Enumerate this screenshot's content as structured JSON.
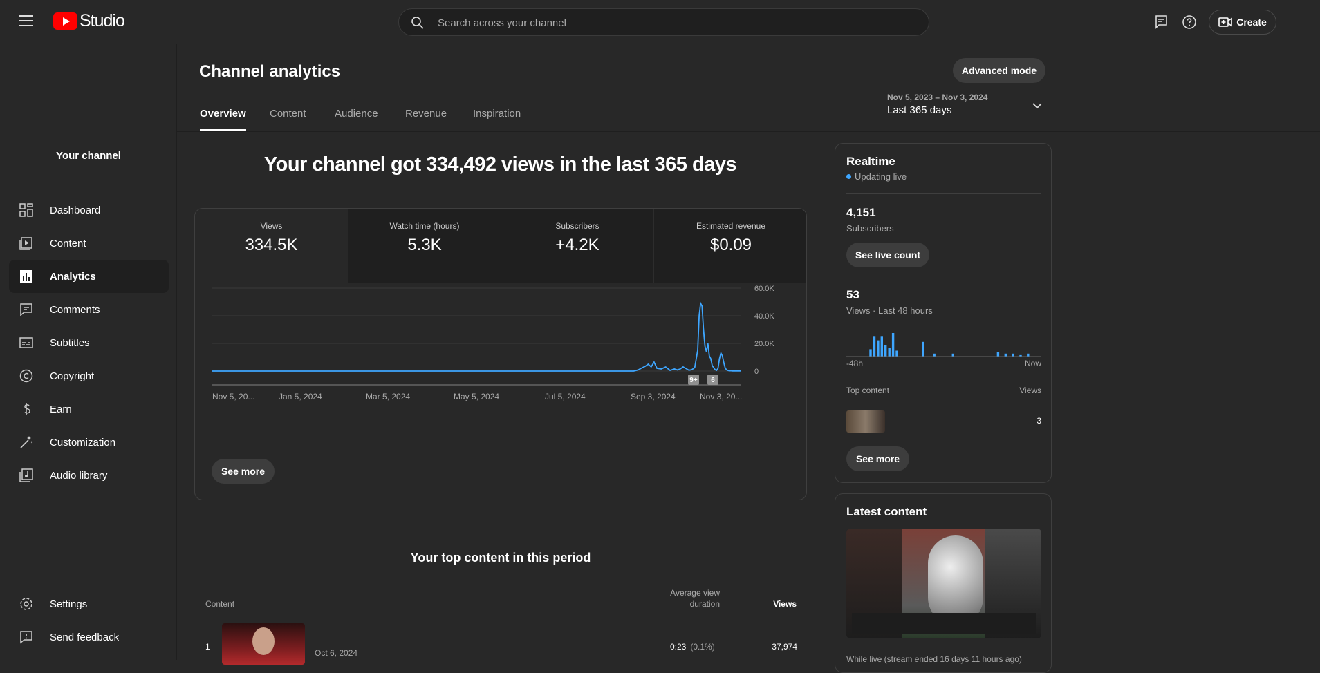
{
  "app": {
    "logo_text": "Studio"
  },
  "search": {
    "placeholder": "Search across your channel"
  },
  "topbar": {
    "create_label": "Create"
  },
  "sidebar": {
    "channel_label": "Your channel",
    "items": [
      {
        "label": "Dashboard",
        "icon": "dashboard-icon"
      },
      {
        "label": "Content",
        "icon": "content-icon"
      },
      {
        "label": "Analytics",
        "icon": "analytics-icon",
        "active": true
      },
      {
        "label": "Comments",
        "icon": "comments-icon"
      },
      {
        "label": "Subtitles",
        "icon": "subtitles-icon"
      },
      {
        "label": "Copyright",
        "icon": "copyright-icon"
      },
      {
        "label": "Earn",
        "icon": "earn-icon"
      },
      {
        "label": "Customization",
        "icon": "customization-icon"
      },
      {
        "label": "Audio library",
        "icon": "audio-library-icon"
      }
    ],
    "bottom_items": [
      {
        "label": "Settings",
        "icon": "gear-icon"
      },
      {
        "label": "Send feedback",
        "icon": "feedback-icon"
      }
    ]
  },
  "header": {
    "title": "Channel analytics",
    "advanced_mode_label": "Advanced mode",
    "tabs": [
      "Overview",
      "Content",
      "Audience",
      "Revenue",
      "Inspiration"
    ],
    "date_range": {
      "dates": "Nov 5, 2023 – Nov 3, 2024",
      "label": "Last 365 days"
    }
  },
  "overview": {
    "headline": "Your channel got 334,492 views in the last 365 days",
    "metrics": [
      {
        "label": "Views",
        "value": "334.5K"
      },
      {
        "label": "Watch time (hours)",
        "value": "5.3K"
      },
      {
        "label": "Subscribers",
        "value": "+4.2K"
      },
      {
        "label": "Estimated revenue",
        "value": "$0.09"
      }
    ],
    "see_more_label": "See more",
    "markers": [
      "9+",
      "6"
    ]
  },
  "chart_data": {
    "type": "line",
    "title": "",
    "xlabel": "",
    "ylabel": "",
    "x_tick_labels": [
      "Nov 5, 20...",
      "Jan 5, 2024",
      "Mar 5, 2024",
      "May 5, 2024",
      "Jul 5, 2024",
      "Sep 3, 2024",
      "Nov 3, 20..."
    ],
    "y_tick_labels": [
      "0",
      "20.0K",
      "40.0K",
      "60.0K"
    ],
    "ylim": [
      0,
      60000
    ],
    "color": "#3ea6ff",
    "x_days": [
      0,
      290,
      293,
      296,
      298,
      300,
      302,
      304,
      306,
      309,
      312,
      315,
      318,
      320,
      322,
      324,
      326,
      328,
      330,
      332,
      334,
      335,
      336,
      337,
      338,
      339,
      340,
      341,
      342,
      343,
      344,
      345,
      346,
      347,
      348,
      349,
      350,
      351,
      352,
      353,
      354,
      355,
      356,
      357,
      358,
      360,
      362,
      364
    ],
    "values": [
      0,
      0,
      800,
      2500,
      3500,
      5000,
      3000,
      6500,
      2000,
      1500,
      3000,
      500,
      1500,
      800,
      1500,
      3000,
      1800,
      600,
      1000,
      2500,
      15000,
      40000,
      49000,
      47000,
      30000,
      18000,
      14000,
      20000,
      11000,
      9000,
      4000,
      2500,
      1000,
      500,
      2000,
      9000,
      13000,
      11000,
      6000,
      2000,
      800,
      400,
      200,
      200,
      100,
      100,
      50,
      50
    ]
  },
  "top_content": {
    "title": "Your top content in this period",
    "columns": {
      "content": "Content",
      "avg_duration": "Average view duration",
      "views": "Views"
    },
    "rows": [
      {
        "rank": "1",
        "date": "Oct 6, 2024",
        "avg_duration": "0:23",
        "pct": "(0.1%)",
        "views": "37,974"
      }
    ]
  },
  "realtime": {
    "title": "Realtime",
    "status": "Updating live",
    "subscribers_value": "4,151",
    "subscribers_label": "Subscribers",
    "see_live_count_label": "See live count",
    "views_value": "53",
    "views_label": "Views · Last 48 hours",
    "axis_start": "-48h",
    "axis_end": "Now",
    "bars": [
      0,
      0,
      0,
      0,
      0,
      0,
      5,
      14,
      11,
      14,
      8,
      6,
      16,
      4,
      0,
      0,
      0,
      0,
      0,
      0,
      10,
      0,
      0,
      2,
      0,
      0,
      0,
      0,
      2,
      0,
      0,
      0,
      0,
      0,
      0,
      0,
      0,
      0,
      0,
      0,
      3,
      0,
      2,
      0,
      2,
      0,
      1,
      0,
      2,
      0,
      0,
      0
    ],
    "top_content_label": "Top content",
    "views_col_label": "Views",
    "top_item_views": "3",
    "see_more_label": "See more"
  },
  "latest_content": {
    "title": "Latest content",
    "caption": "While live (stream ended 16 days 11 hours ago)"
  },
  "colors": {
    "accent": "#3ea6ff",
    "bg": "#282828",
    "panel": "#1f1f1f",
    "brand": "#ff0000"
  }
}
